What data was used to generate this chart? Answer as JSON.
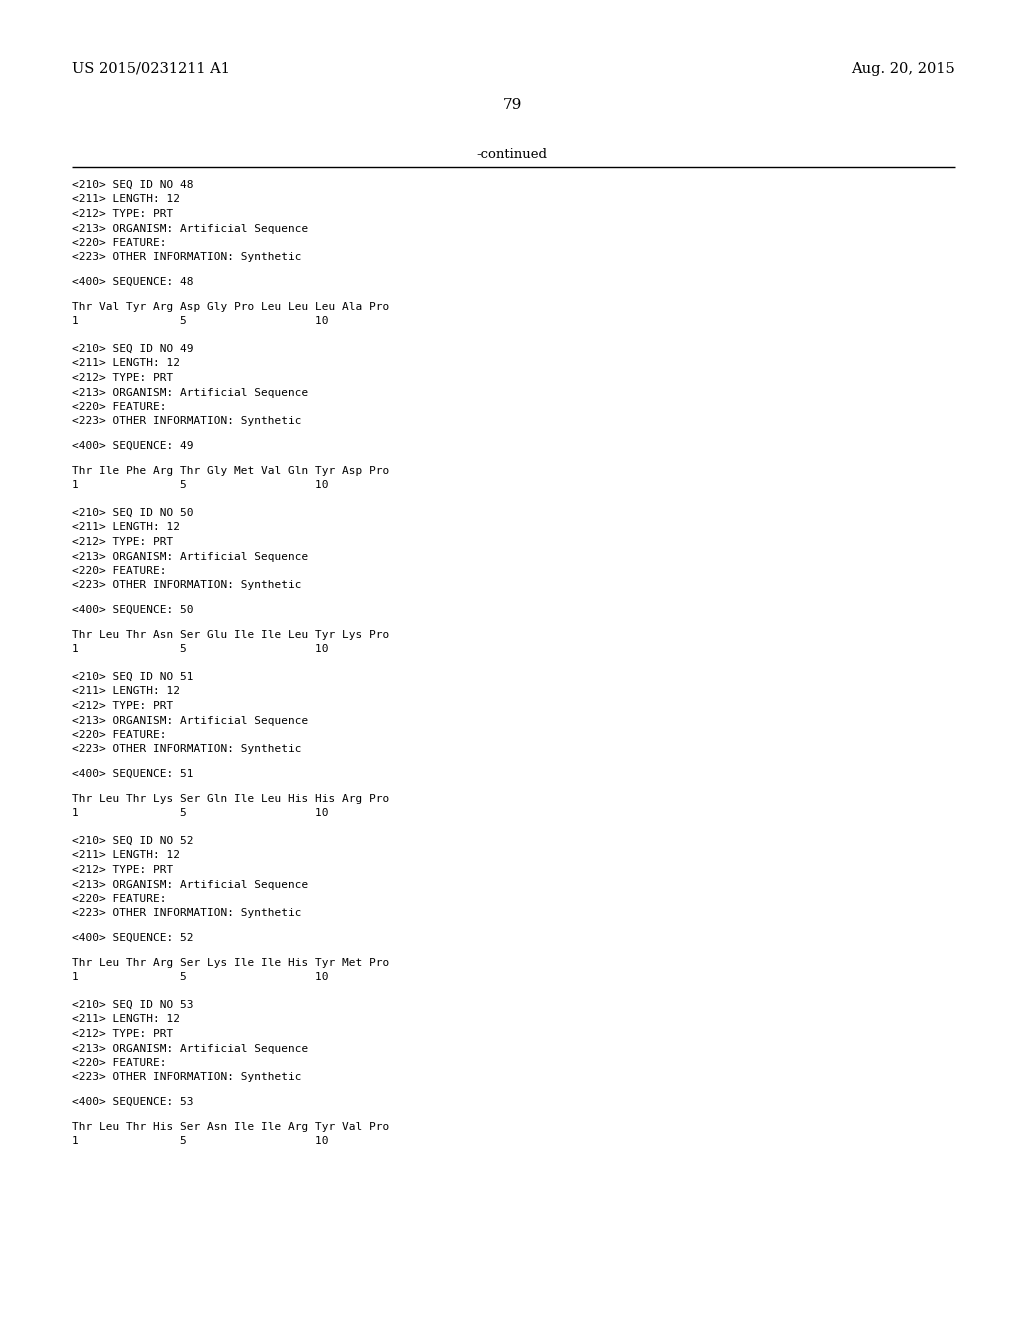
{
  "page_number": "79",
  "left_header": "US 2015/0231211 A1",
  "right_header": "Aug. 20, 2015",
  "continued_text": "-continued",
  "background_color": "#ffffff",
  "text_color": "#000000",
  "sections": [
    {
      "meta": [
        "<210> SEQ ID NO 48",
        "<211> LENGTH: 12",
        "<212> TYPE: PRT",
        "<213> ORGANISM: Artificial Sequence",
        "<220> FEATURE:",
        "<223> OTHER INFORMATION: Synthetic"
      ],
      "seq_label": "<400> SEQUENCE: 48",
      "sequence": "Thr Val Tyr Arg Asp Gly Pro Leu Leu Leu Ala Pro",
      "numbering": "1               5                   10"
    },
    {
      "meta": [
        "<210> SEQ ID NO 49",
        "<211> LENGTH: 12",
        "<212> TYPE: PRT",
        "<213> ORGANISM: Artificial Sequence",
        "<220> FEATURE:",
        "<223> OTHER INFORMATION: Synthetic"
      ],
      "seq_label": "<400> SEQUENCE: 49",
      "sequence": "Thr Ile Phe Arg Thr Gly Met Val Gln Tyr Asp Pro",
      "numbering": "1               5                   10"
    },
    {
      "meta": [
        "<210> SEQ ID NO 50",
        "<211> LENGTH: 12",
        "<212> TYPE: PRT",
        "<213> ORGANISM: Artificial Sequence",
        "<220> FEATURE:",
        "<223> OTHER INFORMATION: Synthetic"
      ],
      "seq_label": "<400> SEQUENCE: 50",
      "sequence": "Thr Leu Thr Asn Ser Glu Ile Ile Leu Tyr Lys Pro",
      "numbering": "1               5                   10"
    },
    {
      "meta": [
        "<210> SEQ ID NO 51",
        "<211> LENGTH: 12",
        "<212> TYPE: PRT",
        "<213> ORGANISM: Artificial Sequence",
        "<220> FEATURE:",
        "<223> OTHER INFORMATION: Synthetic"
      ],
      "seq_label": "<400> SEQUENCE: 51",
      "sequence": "Thr Leu Thr Lys Ser Gln Ile Leu His His Arg Pro",
      "numbering": "1               5                   10"
    },
    {
      "meta": [
        "<210> SEQ ID NO 52",
        "<211> LENGTH: 12",
        "<212> TYPE: PRT",
        "<213> ORGANISM: Artificial Sequence",
        "<220> FEATURE:",
        "<223> OTHER INFORMATION: Synthetic"
      ],
      "seq_label": "<400> SEQUENCE: 52",
      "sequence": "Thr Leu Thr Arg Ser Lys Ile Ile His Tyr Met Pro",
      "numbering": "1               5                   10"
    },
    {
      "meta": [
        "<210> SEQ ID NO 53",
        "<211> LENGTH: 12",
        "<212> TYPE: PRT",
        "<213> ORGANISM: Artificial Sequence",
        "<220> FEATURE:",
        "<223> OTHER INFORMATION: Synthetic"
      ],
      "seq_label": "<400> SEQUENCE: 53",
      "sequence": "Thr Leu Thr His Ser Asn Ile Ile Arg Tyr Val Pro",
      "numbering": "1               5                   10"
    }
  ]
}
